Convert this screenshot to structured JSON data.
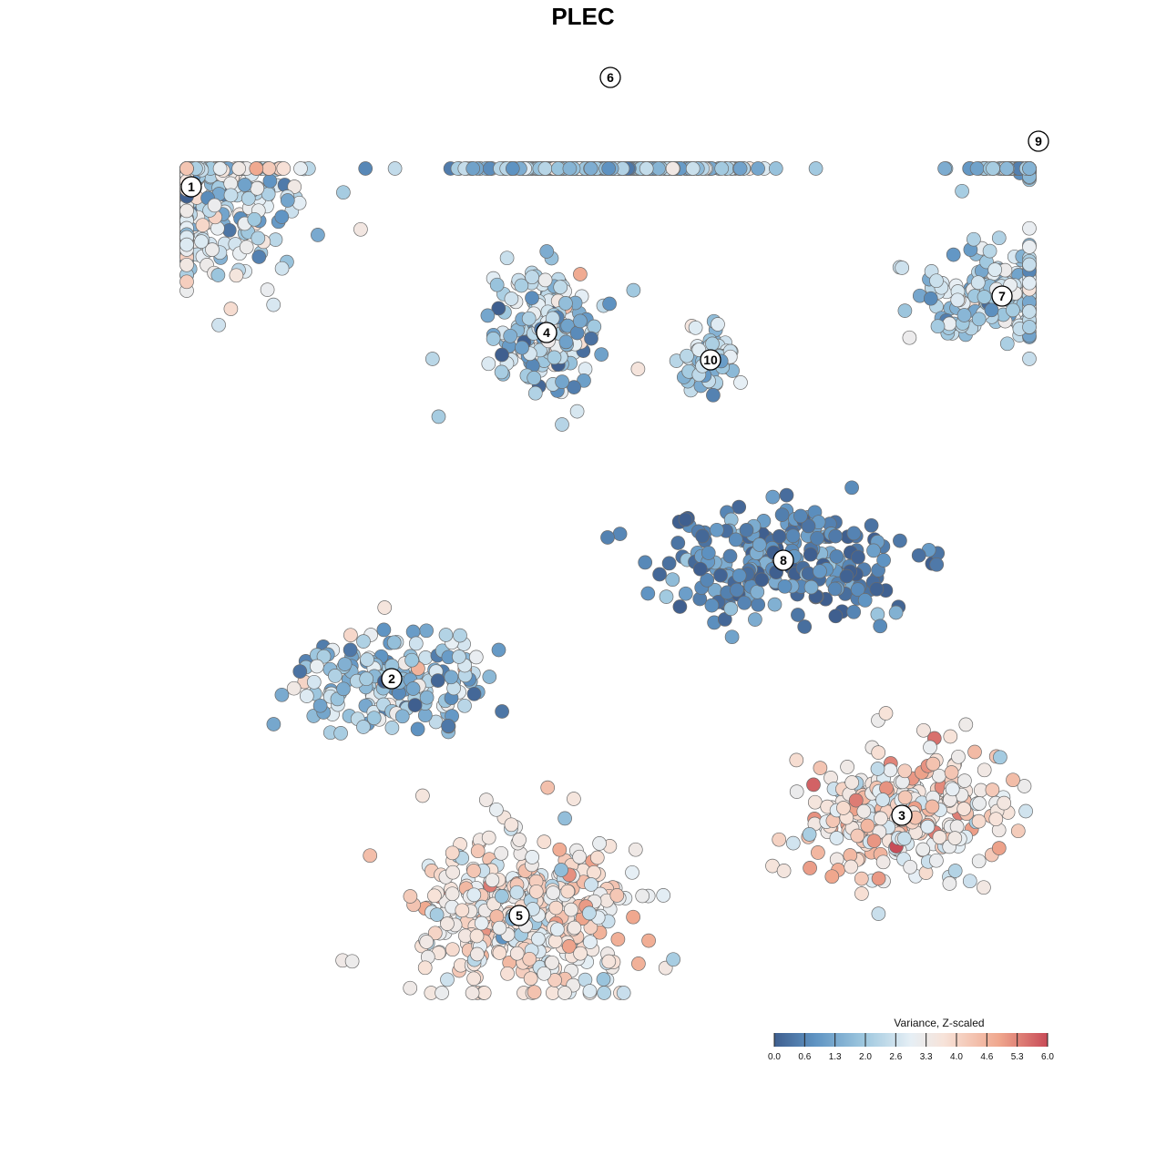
{
  "chart_data": {
    "type": "scatter",
    "title": "PLEC",
    "legend": {
      "title": "Variance, Z-scaled",
      "ticks": [
        "0.0",
        "0.6",
        "1.3",
        "2.0",
        "2.6",
        "3.3",
        "4.0",
        "4.6",
        "5.3",
        "6.0"
      ],
      "range": [
        0,
        6
      ],
      "placement": "bottom-right",
      "colors": [
        "#3f5f8f",
        "#5f94c3",
        "#9fc8df",
        "#e6eff5",
        "#f7e3d9",
        "#f0a88e",
        "#c84b57"
      ]
    },
    "cluster_labels": [
      "1",
      "2",
      "3",
      "4",
      "5",
      "6",
      "7",
      "8",
      "9",
      "10"
    ],
    "clusters": [
      {
        "label": "1",
        "x": -4.3,
        "y": 4.2,
        "mean_value": 2.7
      },
      {
        "label": "2",
        "x": -2.1,
        "y": -1.2,
        "mean_value": 2.0
      },
      {
        "label": "3",
        "x": 3.5,
        "y": -2.7,
        "mean_value": 3.9
      },
      {
        "label": "4",
        "x": -0.4,
        "y": 2.6,
        "mean_value": 2.2
      },
      {
        "label": "5",
        "x": -0.7,
        "y": -3.8,
        "mean_value": 3.6
      },
      {
        "label": "6",
        "x": 0.3,
        "y": 5.4,
        "mean_value": 1.9
      },
      {
        "label": "7",
        "x": 4.6,
        "y": 3.0,
        "mean_value": 2.2
      },
      {
        "label": "8",
        "x": 2.2,
        "y": 0.1,
        "mean_value": 0.7
      },
      {
        "label": "9",
        "x": 5.0,
        "y": 4.7,
        "mean_value": 1.6
      },
      {
        "label": "10",
        "x": 1.4,
        "y": 2.3,
        "mean_value": 2.5
      }
    ],
    "xlabel": "",
    "ylabel": "",
    "grid": false
  }
}
